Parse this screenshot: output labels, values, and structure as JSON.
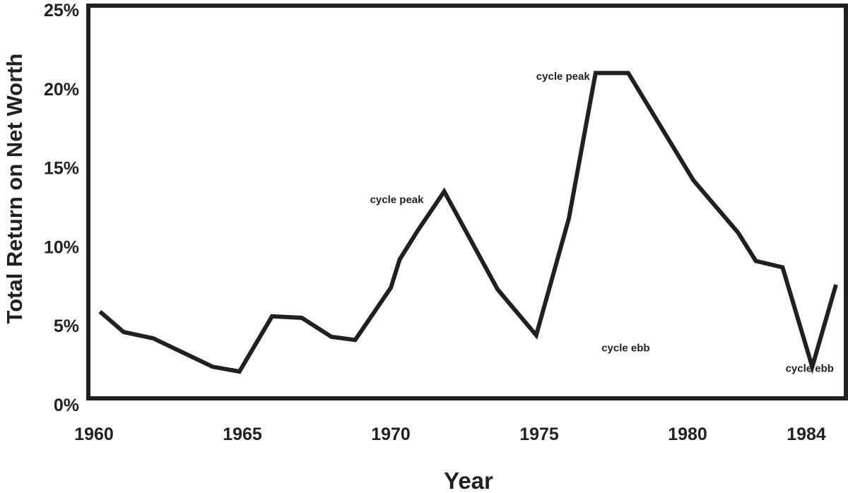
{
  "chart_data": {
    "type": "line",
    "title": "",
    "xlabel": "Year",
    "ylabel": "Total Return on Net Worth",
    "xlim": [
      1960,
      1985
    ],
    "ylim": [
      0,
      25
    ],
    "x_ticks": [
      1960,
      1965,
      1970,
      1975,
      1980,
      1984
    ],
    "x_tick_labels": [
      "1960",
      "1965",
      "1970",
      "1975",
      "1980",
      "1984"
    ],
    "y_ticks": [
      0,
      5,
      10,
      15,
      20,
      25
    ],
    "y_tick_labels": [
      "0%",
      "5%",
      "10%",
      "15%",
      "20%",
      "25%"
    ],
    "grid": false,
    "colors": {
      "line": "#231f20",
      "frame": "#231f20",
      "text": "#231f20"
    },
    "series": [
      {
        "x": [
          1960.2,
          1961.0,
          1962.0,
          1963.0,
          1964.0,
          1964.9,
          1966.0,
          1967.0,
          1968.0,
          1968.8,
          1970.0,
          1970.3,
          1970.9,
          1971.8,
          1973.6,
          1974.9,
          1976.0,
          1976.9,
          1978.0,
          1980.2,
          1981.7,
          1982.3,
          1983.2,
          1984.2,
          1985.0
        ],
        "y": [
          5.9,
          4.6,
          4.2,
          3.3,
          2.4,
          2.1,
          5.6,
          5.5,
          4.3,
          4.1,
          7.4,
          9.2,
          11.0,
          13.5,
          7.3,
          4.4,
          11.8,
          21.0,
          21.0,
          14.2,
          10.9,
          9.1,
          8.7,
          2.4,
          7.6
        ]
      }
    ],
    "annotations": [
      {
        "text": "cycle peak",
        "x": 1969.3,
        "y": 13.0
      },
      {
        "text": "cycle peak",
        "x": 1974.9,
        "y": 20.8
      },
      {
        "text": "cycle ebb",
        "x": 1977.1,
        "y": 3.6
      },
      {
        "text": "cycle ebb",
        "x": 1983.3,
        "y": 2.3
      }
    ]
  }
}
